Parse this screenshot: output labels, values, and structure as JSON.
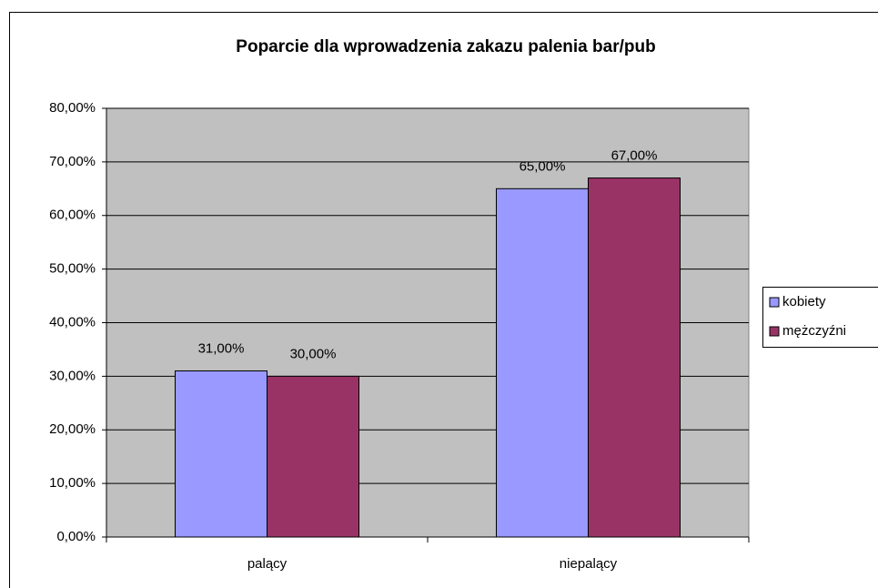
{
  "chart_data": {
    "type": "bar",
    "title": "Poparcie dla wprowadzenia zakazu palenia bar/pub",
    "categories": [
      "palący",
      "niepalący"
    ],
    "series": [
      {
        "name": "kobiety",
        "color": "#9999ff",
        "values": [
          31,
          65
        ],
        "value_labels": [
          "31,00%",
          "65,00%"
        ]
      },
      {
        "name": "mężczyźni",
        "color": "#993366",
        "values": [
          30,
          67
        ],
        "value_labels": [
          "30,00%",
          "67,00%"
        ]
      }
    ],
    "ylim": [
      0,
      80
    ],
    "yticks": [
      {
        "value": 0,
        "label": "0,00%"
      },
      {
        "value": 10,
        "label": "10,00%"
      },
      {
        "value": 20,
        "label": "20,00%"
      },
      {
        "value": 30,
        "label": "30,00%"
      },
      {
        "value": 40,
        "label": "40,00%"
      },
      {
        "value": 50,
        "label": "50,00%"
      },
      {
        "value": 60,
        "label": "60,00%"
      },
      {
        "value": 70,
        "label": "70,00%"
      },
      {
        "value": 80,
        "label": "80,00%"
      }
    ],
    "grid": true,
    "legend": "right"
  }
}
